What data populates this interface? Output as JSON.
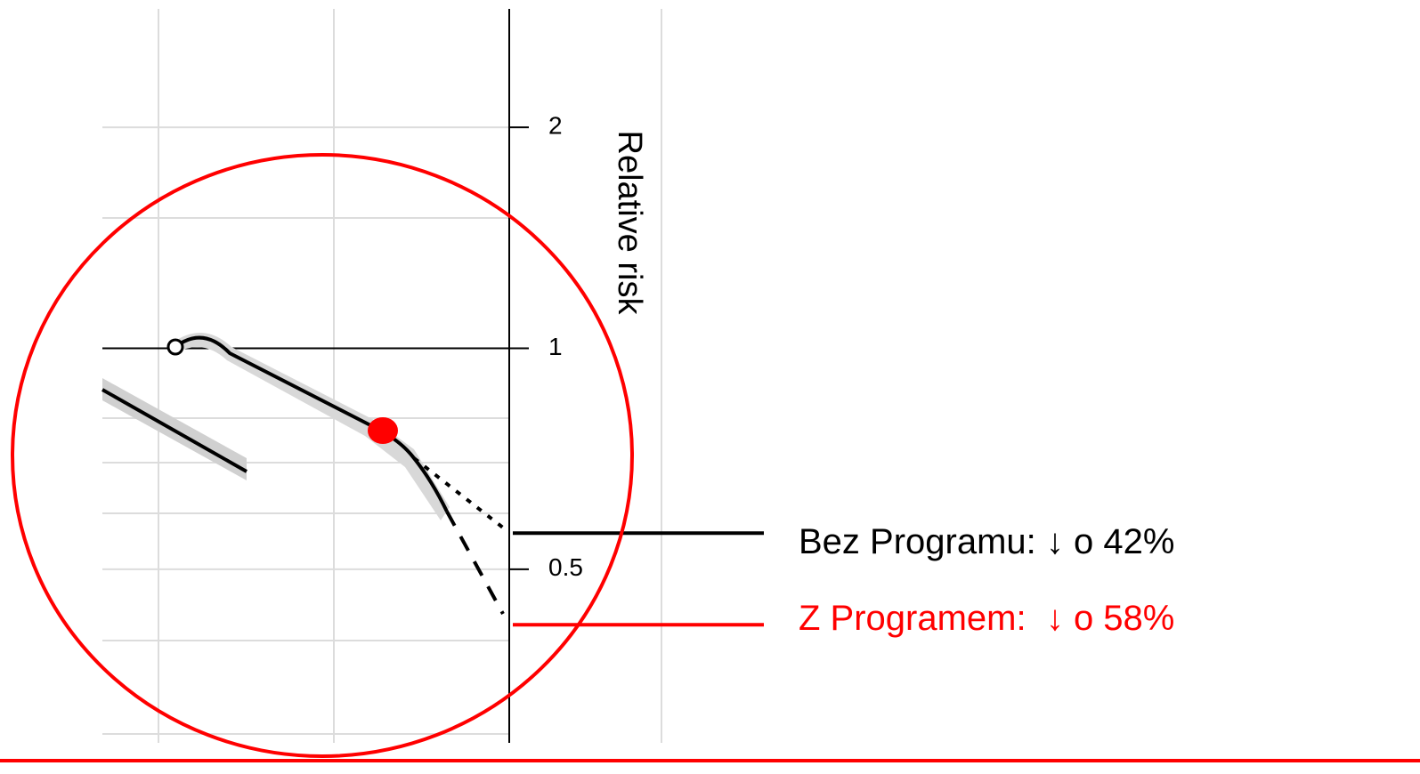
{
  "chart_data": {
    "type": "line",
    "y_label": "Relative risk",
    "log_y": true,
    "ylim": [
      0.29,
      2.9
    ],
    "yticks": [
      2,
      1,
      0.5
    ],
    "annotations": [
      {
        "text": "Bez Programu: ↓ o 42%",
        "value": 0.56,
        "color": "#000000"
      },
      {
        "text": "Z Programem:  ↓ o 58%",
        "value": 0.42,
        "color": "#ff0000"
      }
    ]
  }
}
